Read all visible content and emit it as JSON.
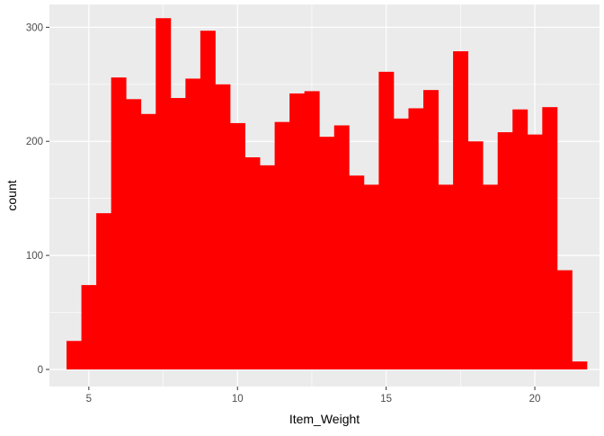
{
  "chart_data": {
    "type": "bar",
    "subtype": "histogram",
    "title": "",
    "xlabel": "Item_Weight",
    "ylabel": "count",
    "xlim": [
      3.675,
      22.175
    ],
    "ylim": [
      -15,
      320
    ],
    "x_ticks": [
      5,
      10,
      15,
      20
    ],
    "y_ticks": [
      0,
      100,
      200,
      300
    ],
    "grid": true,
    "bin_width": 0.5,
    "bins_start": [
      4.25,
      4.75,
      5.25,
      5.75,
      6.25,
      6.75,
      7.25,
      7.75,
      8.25,
      8.75,
      9.25,
      9.75,
      10.25,
      10.75,
      11.25,
      11.75,
      12.25,
      12.75,
      13.25,
      13.75,
      14.25,
      14.75,
      15.25,
      15.75,
      16.25,
      16.75,
      17.25,
      17.75,
      18.25,
      18.75,
      19.25,
      19.75,
      20.25,
      20.75,
      21.25
    ],
    "values": [
      25,
      74,
      137,
      256,
      237,
      224,
      308,
      238,
      255,
      297,
      250,
      216,
      186,
      179,
      217,
      242,
      244,
      204,
      214,
      170,
      162,
      261,
      220,
      229,
      245,
      162,
      279,
      200,
      162,
      208,
      228,
      206,
      230,
      87,
      7
    ],
    "fill_color": "#FF0000",
    "panel_color": "#EBEBEB",
    "grid_color": "#FFFFFF"
  }
}
